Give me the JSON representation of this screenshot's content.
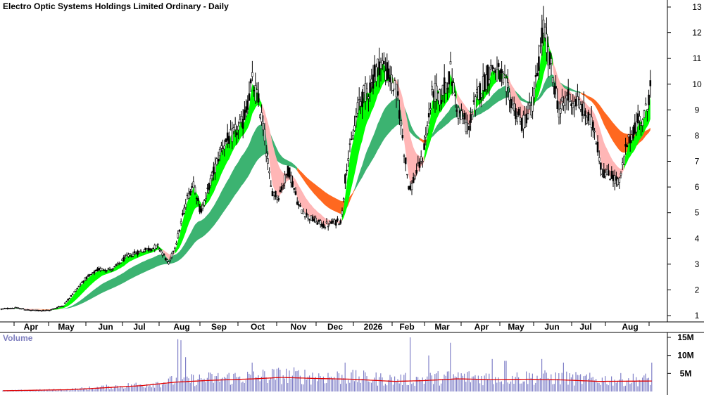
{
  "chart_data": {
    "type": "candlestick",
    "title": "Electro Optic Systems Holdings Limited Ordinary - Daily",
    "price_axis": {
      "ticks": [
        "1",
        "2",
        "3",
        "4",
        "5",
        "6",
        "7",
        "8",
        "9",
        "10",
        "11",
        "12",
        "13"
      ],
      "ylim": [
        0.7,
        13.3
      ]
    },
    "month_labels": [
      "Apr",
      "May",
      "Jun",
      "Jul",
      "Aug",
      "Sep",
      "Oct",
      "Nov",
      "Dec",
      "2026",
      "Feb",
      "Mar",
      "Apr",
      "May",
      "Jun",
      "Jul",
      "Aug"
    ],
    "volume_panel": {
      "label": "Volume",
      "ticks": [
        "5M",
        "10M",
        "15M"
      ],
      "ylim": [
        0,
        16
      ]
    },
    "price_anchors": [
      [
        0,
        1.25
      ],
      [
        22,
        1.3
      ],
      [
        45,
        1.2
      ],
      [
        70,
        1.2
      ],
      [
        90,
        1.4
      ],
      [
        105,
        1.9
      ],
      [
        120,
        2.4
      ],
      [
        140,
        2.8
      ],
      [
        160,
        2.8
      ],
      [
        180,
        3.3
      ],
      [
        200,
        3.5
      ],
      [
        225,
        3.7
      ],
      [
        240,
        3.0
      ],
      [
        252,
        4.0
      ],
      [
        265,
        5.5
      ],
      [
        275,
        6.2
      ],
      [
        285,
        5.0
      ],
      [
        300,
        6.3
      ],
      [
        315,
        7.6
      ],
      [
        330,
        8.0
      ],
      [
        345,
        8.5
      ],
      [
        358,
        10.1
      ],
      [
        368,
        9.2
      ],
      [
        375,
        8.2
      ],
      [
        385,
        5.9
      ],
      [
        395,
        5.6
      ],
      [
        410,
        6.7
      ],
      [
        425,
        5.2
      ],
      [
        440,
        4.8
      ],
      [
        460,
        4.5
      ],
      [
        485,
        4.7
      ],
      [
        492,
        6.8
      ],
      [
        500,
        7.8
      ],
      [
        510,
        9.3
      ],
      [
        525,
        9.9
      ],
      [
        540,
        10.9
      ],
      [
        555,
        10.2
      ],
      [
        565,
        9.5
      ],
      [
        575,
        7.2
      ],
      [
        582,
        5.8
      ],
      [
        590,
        6.5
      ],
      [
        600,
        7.1
      ],
      [
        615,
        9.8
      ],
      [
        625,
        9.4
      ],
      [
        640,
        10.5
      ],
      [
        650,
        9.0
      ],
      [
        665,
        8.3
      ],
      [
        680,
        9.7
      ],
      [
        700,
        10.7
      ],
      [
        715,
        10.1
      ],
      [
        730,
        9.1
      ],
      [
        742,
        8.4
      ],
      [
        758,
        9.4
      ],
      [
        772,
        12.2
      ],
      [
        780,
        11.0
      ],
      [
        795,
        8.9
      ],
      [
        805,
        9.5
      ],
      [
        820,
        9.3
      ],
      [
        835,
        8.7
      ],
      [
        845,
        8.2
      ],
      [
        855,
        6.6
      ],
      [
        870,
        6.4
      ],
      [
        880,
        6.2
      ],
      [
        890,
        7.6
      ],
      [
        905,
        8.5
      ],
      [
        915,
        8.8
      ],
      [
        920,
        9.1
      ],
      [
        925,
        10.6
      ]
    ],
    "volume_anchors": [
      [
        0,
        0.2
      ],
      [
        100,
        0.5
      ],
      [
        200,
        1.6
      ],
      [
        250,
        2.6
      ],
      [
        300,
        3.1
      ],
      [
        360,
        3.5
      ],
      [
        400,
        3.9
      ],
      [
        450,
        3.6
      ],
      [
        500,
        3.4
      ],
      [
        560,
        2.8
      ],
      [
        600,
        3.0
      ],
      [
        650,
        3.5
      ],
      [
        700,
        3.3
      ],
      [
        750,
        3.4
      ],
      [
        800,
        3.2
      ],
      [
        850,
        2.8
      ],
      [
        925,
        2.9
      ]
    ],
    "volume_spikes": [
      [
        252,
        14.5
      ],
      [
        257,
        14.2
      ],
      [
        263,
        9.5
      ],
      [
        358,
        8.0
      ],
      [
        490,
        8.0
      ],
      [
        582,
        15.0
      ],
      [
        610,
        10.0
      ],
      [
        640,
        13.5
      ],
      [
        700,
        9.0
      ],
      [
        718,
        8.5
      ],
      [
        770,
        9.0
      ],
      [
        800,
        8.0
      ],
      [
        925,
        8.0
      ]
    ],
    "colors": {
      "bull_fast": "#00ff00",
      "bear_fast": "#ffb6b6",
      "bull_slow": "#3cb371",
      "bear_slow": "#ff6820",
      "volume_bar": "#8080c8",
      "volume_avg": "#e00000",
      "volume_label": "#7f7fbf"
    }
  }
}
